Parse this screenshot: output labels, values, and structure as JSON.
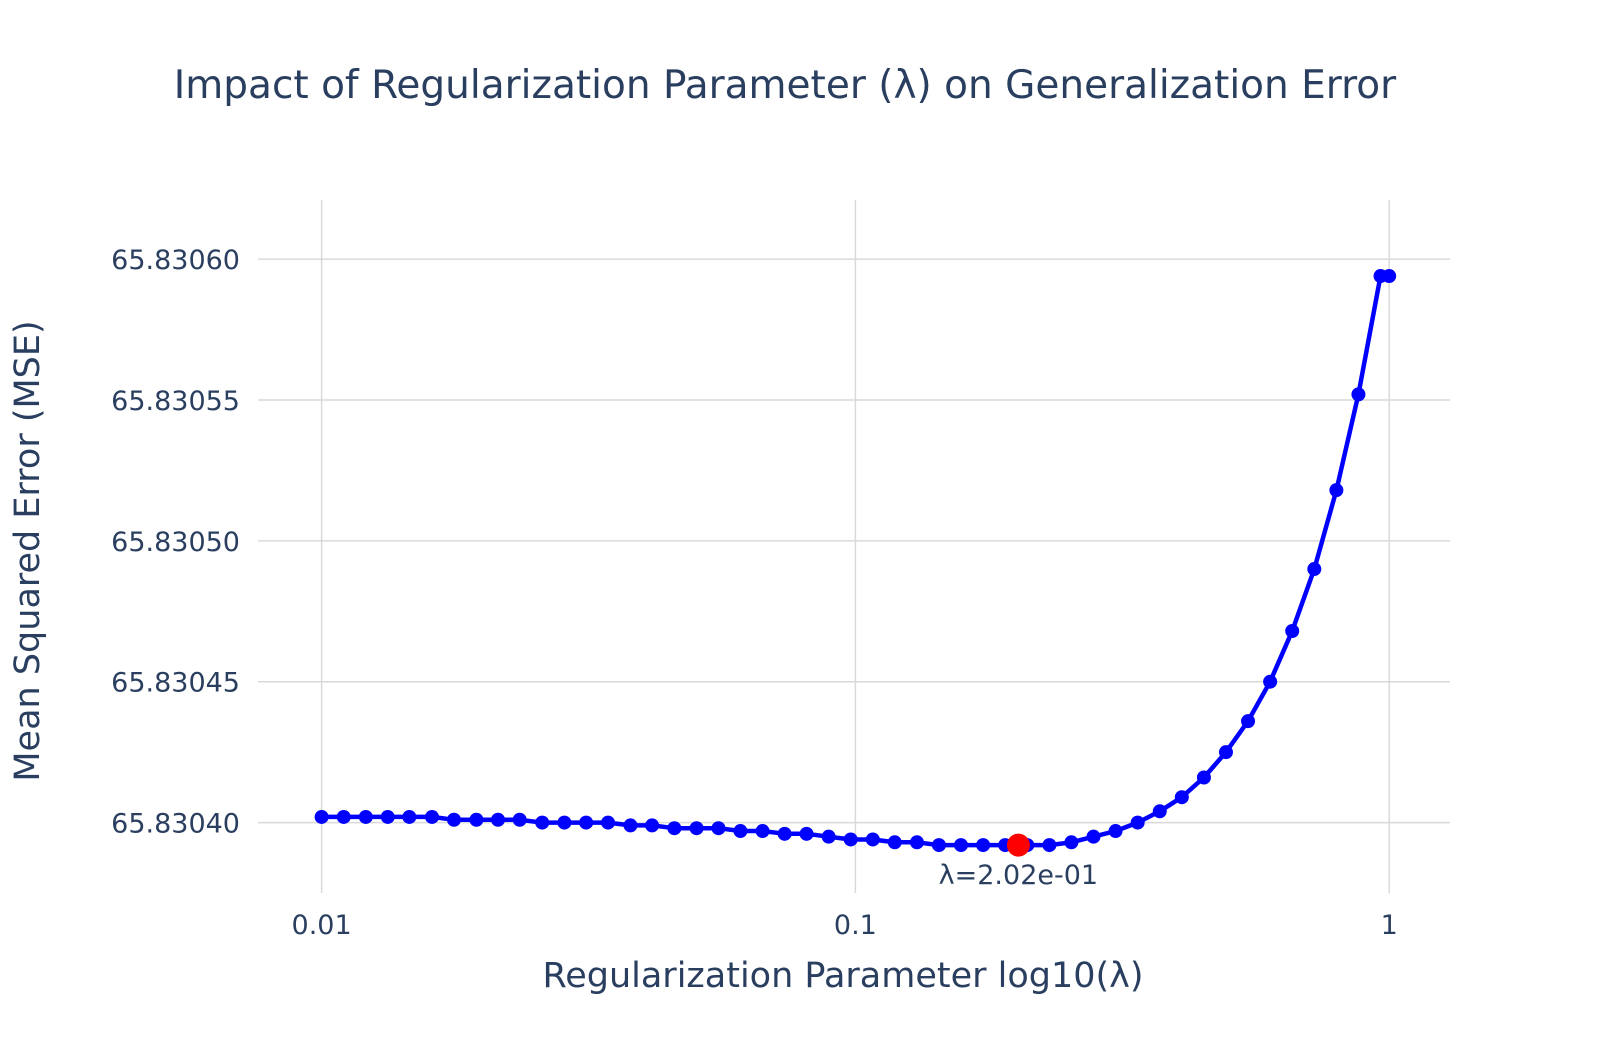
{
  "chart_data": {
    "type": "line",
    "title": "Impact of Regularization Parameter (λ) on Generalization Error",
    "xlabel": "Regularization Parameter log10(λ)",
    "ylabel": "Mean Squared Error (MSE)",
    "x_scale": "log",
    "x_tick_labels": [
      "0.01",
      "0.1",
      "1"
    ],
    "x_ticks": [
      0.01,
      0.1,
      1
    ],
    "y_tick_labels": [
      "65.83040",
      "65.83045",
      "65.83050",
      "65.83055",
      "65.83060"
    ],
    "y_ticks": [
      65.8304,
      65.83045,
      65.8305,
      65.83055,
      65.8306
    ],
    "xlim": [
      0.0076,
      1.3
    ],
    "ylim": [
      65.830375,
      65.830621
    ],
    "grid": true,
    "series": [
      {
        "color": "#0000ff",
        "mode": "lines+markers",
        "x": [
          0.01,
          0.011,
          0.0121,
          0.0133,
          0.0146,
          0.0161,
          0.0177,
          0.0195,
          0.0214,
          0.0235,
          0.0259,
          0.0285,
          0.0313,
          0.0344,
          0.0379,
          0.0416,
          0.0458,
          0.0504,
          0.0554,
          0.0609,
          0.067,
          0.0737,
          0.081,
          0.0891,
          0.098,
          0.1078,
          0.1185,
          0.1304,
          0.1434,
          0.1577,
          0.1735,
          0.1908,
          0.2099,
          0.2309,
          0.2539,
          0.2793,
          0.3072,
          0.3379,
          0.3717,
          0.4088,
          0.4497,
          0.4946,
          0.544,
          0.5984,
          0.6582,
          0.724,
          0.7963,
          0.8758,
          0.9633,
          1.0
        ],
        "y": [
          65.830402,
          65.830402,
          65.830402,
          65.830402,
          65.830402,
          65.830402,
          65.830401,
          65.830401,
          65.830401,
          65.830401,
          65.8304,
          65.8304,
          65.8304,
          65.8304,
          65.830399,
          65.830399,
          65.830398,
          65.830398,
          65.830398,
          65.830397,
          65.830397,
          65.830396,
          65.830396,
          65.830395,
          65.830394,
          65.830394,
          65.830393,
          65.830393,
          65.830392,
          65.830392,
          65.830392,
          65.830392,
          65.830392,
          65.830392,
          65.830393,
          65.830395,
          65.830397,
          65.8304,
          65.830404,
          65.830409,
          65.830416,
          65.830425,
          65.830436,
          65.83045,
          65.830468,
          65.83049,
          65.830518,
          65.830552,
          65.830594,
          65.830594
        ]
      }
    ],
    "highlight": {
      "x": 0.202,
      "y": 65.830392,
      "color": "#ff0000",
      "label": "λ=2.02e-01"
    }
  }
}
